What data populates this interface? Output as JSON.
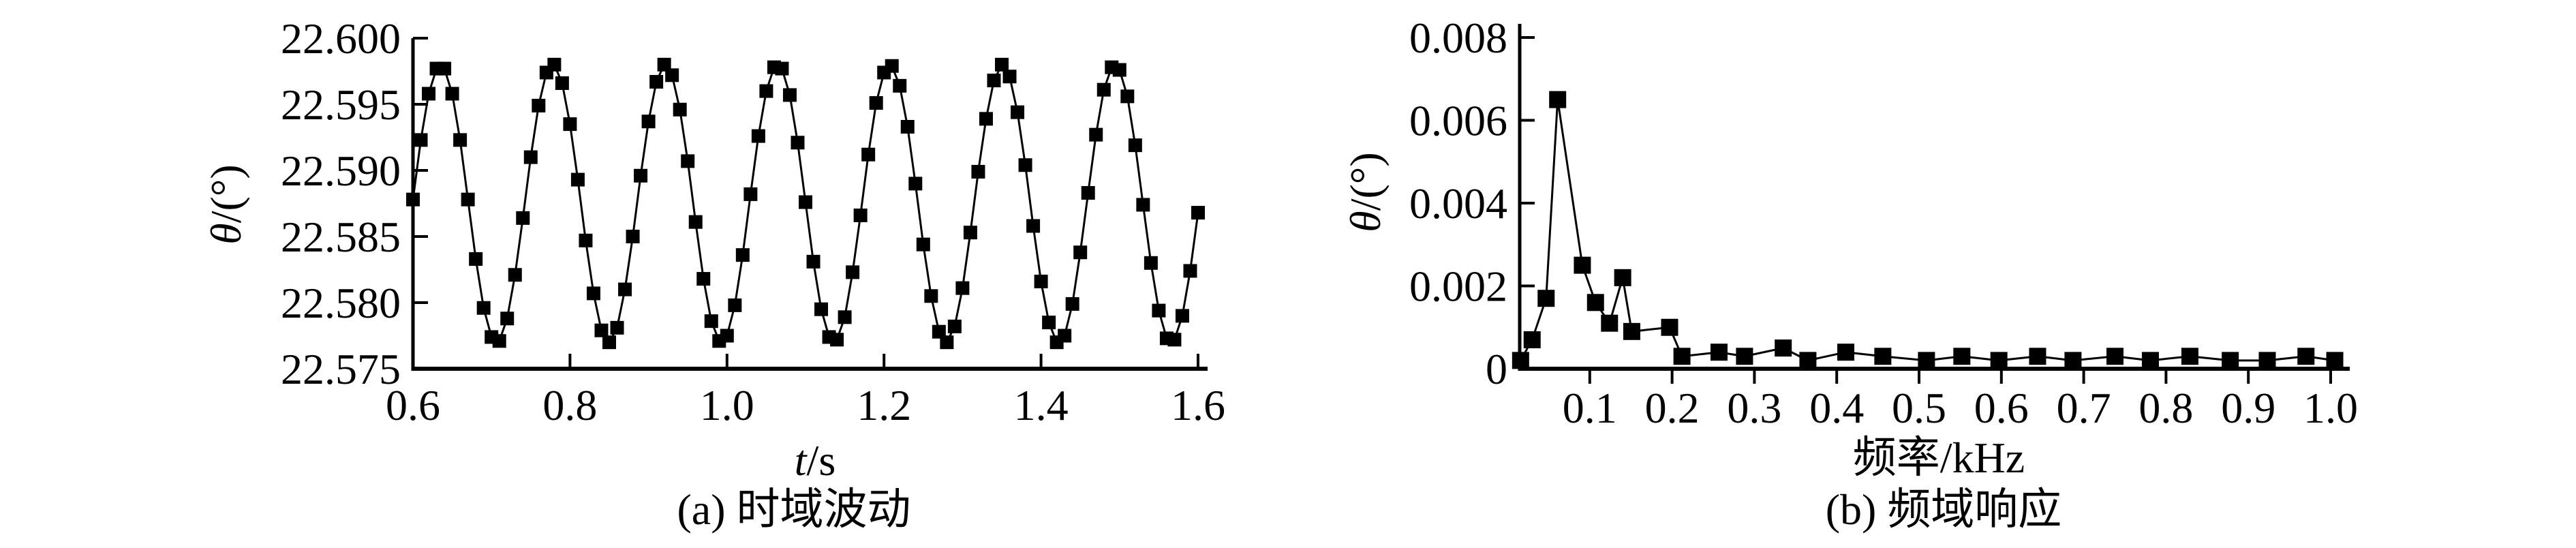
{
  "figure": {
    "background": "#ffffff",
    "ink": "#000000"
  },
  "chart_data": [
    {
      "id": "time-domain",
      "type": "line",
      "caption": "(a) 时域波动",
      "xlabel": {
        "italic": "t",
        "normal": "/s"
      },
      "ylabel": {
        "italic": "θ",
        "normal": "/(°)"
      },
      "xlim": [
        0.6,
        1.6
      ],
      "ylim": [
        22.575,
        22.6
      ],
      "grid": "off",
      "legend": "none",
      "marker": "square",
      "xticks": [
        0.6,
        0.8,
        1.0,
        1.2,
        1.4,
        1.6
      ],
      "xtick_labels": [
        "0.6",
        "0.8",
        "1.0",
        "1.2",
        "1.4",
        "1.6"
      ],
      "yticks": [
        22.575,
        22.58,
        22.585,
        22.59,
        22.595,
        22.6
      ],
      "ytick_labels": [
        "22.575",
        "22.580",
        "22.585",
        "22.590",
        "22.595",
        "22.600"
      ],
      "x": [
        0.6,
        0.61,
        0.62,
        0.63,
        0.64,
        0.65,
        0.66,
        0.67,
        0.68,
        0.69,
        0.7,
        0.71,
        0.72,
        0.73,
        0.74,
        0.75,
        0.76,
        0.77,
        0.78,
        0.79,
        0.8,
        0.81,
        0.82,
        0.83,
        0.84,
        0.85,
        0.86,
        0.87,
        0.88,
        0.89,
        0.9,
        0.91,
        0.92,
        0.93,
        0.94,
        0.95,
        0.96,
        0.97,
        0.98,
        0.99,
        1.0,
        1.01,
        1.02,
        1.03,
        1.04,
        1.05,
        1.06,
        1.07,
        1.08,
        1.09,
        1.1,
        1.11,
        1.12,
        1.13,
        1.14,
        1.15,
        1.16,
        1.17,
        1.18,
        1.19,
        1.2,
        1.21,
        1.22,
        1.23,
        1.24,
        1.25,
        1.26,
        1.27,
        1.28,
        1.29,
        1.3,
        1.31,
        1.32,
        1.33,
        1.34,
        1.35,
        1.36,
        1.37,
        1.38,
        1.39,
        1.4,
        1.41,
        1.42,
        1.43,
        1.44,
        1.45,
        1.46,
        1.47,
        1.48,
        1.49,
        1.5,
        1.51,
        1.52,
        1.53,
        1.54,
        1.55,
        1.56,
        1.57,
        1.58,
        1.59,
        1.6
      ],
      "y": [
        22.5878,
        22.5923,
        22.5958,
        22.5977,
        22.5977,
        22.5958,
        22.5923,
        22.5878,
        22.5833,
        22.5796,
        22.5774,
        22.5771,
        22.5788,
        22.5821,
        22.5864,
        22.591,
        22.5949,
        22.5974,
        22.598,
        22.5966,
        22.5935,
        22.5893,
        22.5847,
        22.5807,
        22.5779,
        22.577,
        22.5781,
        22.581,
        22.585,
        22.5896,
        22.5937,
        22.5967,
        22.598,
        22.5972,
        22.5946,
        22.5907,
        22.5861,
        22.5818,
        22.5786,
        22.5771,
        22.5775,
        22.5798,
        22.5836,
        22.5882,
        22.5926,
        22.596,
        22.5978,
        22.5977,
        22.5957,
        22.5921,
        22.5876,
        22.5831,
        22.5795,
        22.5774,
        22.5772,
        22.5789,
        22.5823,
        22.5866,
        22.5912,
        22.5951,
        22.5974,
        22.5979,
        22.5964,
        22.5933,
        22.589,
        22.5844,
        22.5805,
        22.5778,
        22.577,
        22.5782,
        22.5811,
        22.5853,
        22.5899,
        22.5939,
        22.5968,
        22.598,
        22.5971,
        22.5944,
        22.5904,
        22.5858,
        22.5816,
        22.5785,
        22.577,
        22.5775,
        22.5799,
        22.5838,
        22.5883,
        22.5927,
        22.5961,
        22.5978,
        22.5976,
        22.5956,
        22.5919,
        22.5874,
        22.583,
        22.5794,
        22.5773,
        22.5772,
        22.579,
        22.5824,
        22.5868
      ]
    },
    {
      "id": "frequency-domain",
      "type": "line",
      "caption": "(b) 频域响应",
      "xlabel": {
        "italic": "",
        "normal": "频率/kHz"
      },
      "ylabel": {
        "italic": "θ",
        "normal": "/(°)"
      },
      "xlim": [
        0,
        1.0
      ],
      "ylim": [
        0,
        0.008
      ],
      "grid": "off",
      "legend": "none",
      "marker": "square",
      "xticks": [
        0.1,
        0.2,
        0.3,
        0.4,
        0.5,
        0.6,
        0.7,
        0.8,
        0.9,
        1.0
      ],
      "xtick_labels": [
        "0.1",
        "0.2",
        "0.3",
        "0.4",
        "0.5",
        "0.6",
        "0.7",
        "0.8",
        "0.9",
        "1.0"
      ],
      "yticks": [
        0,
        0.002,
        0.004,
        0.006,
        0.008
      ],
      "ytick_labels": [
        "0",
        "0.002",
        "0.004",
        "0.006",
        "0.008"
      ],
      "x": [
        0.016,
        0.03,
        0.047,
        0.061,
        0.091,
        0.107,
        0.124,
        0.14,
        0.151,
        0.197,
        0.212,
        0.257,
        0.288,
        0.335,
        0.365,
        0.411,
        0.456,
        0.509,
        0.552,
        0.597,
        0.644,
        0.687,
        0.738,
        0.781,
        0.829,
        0.878,
        0.923,
        0.97,
        1.005
      ],
      "y": [
        0.0002,
        0.0007,
        0.0017,
        0.0065,
        0.0025,
        0.0016,
        0.0011,
        0.0022,
        0.0009,
        0.001,
        0.0003,
        0.0004,
        0.0003,
        0.0005,
        0.0002,
        0.0004,
        0.0003,
        0.0002,
        0.0003,
        0.0002,
        0.0003,
        0.0002,
        0.0003,
        0.0002,
        0.0003,
        0.0002,
        0.0002,
        0.0003,
        0.0002
      ]
    }
  ]
}
